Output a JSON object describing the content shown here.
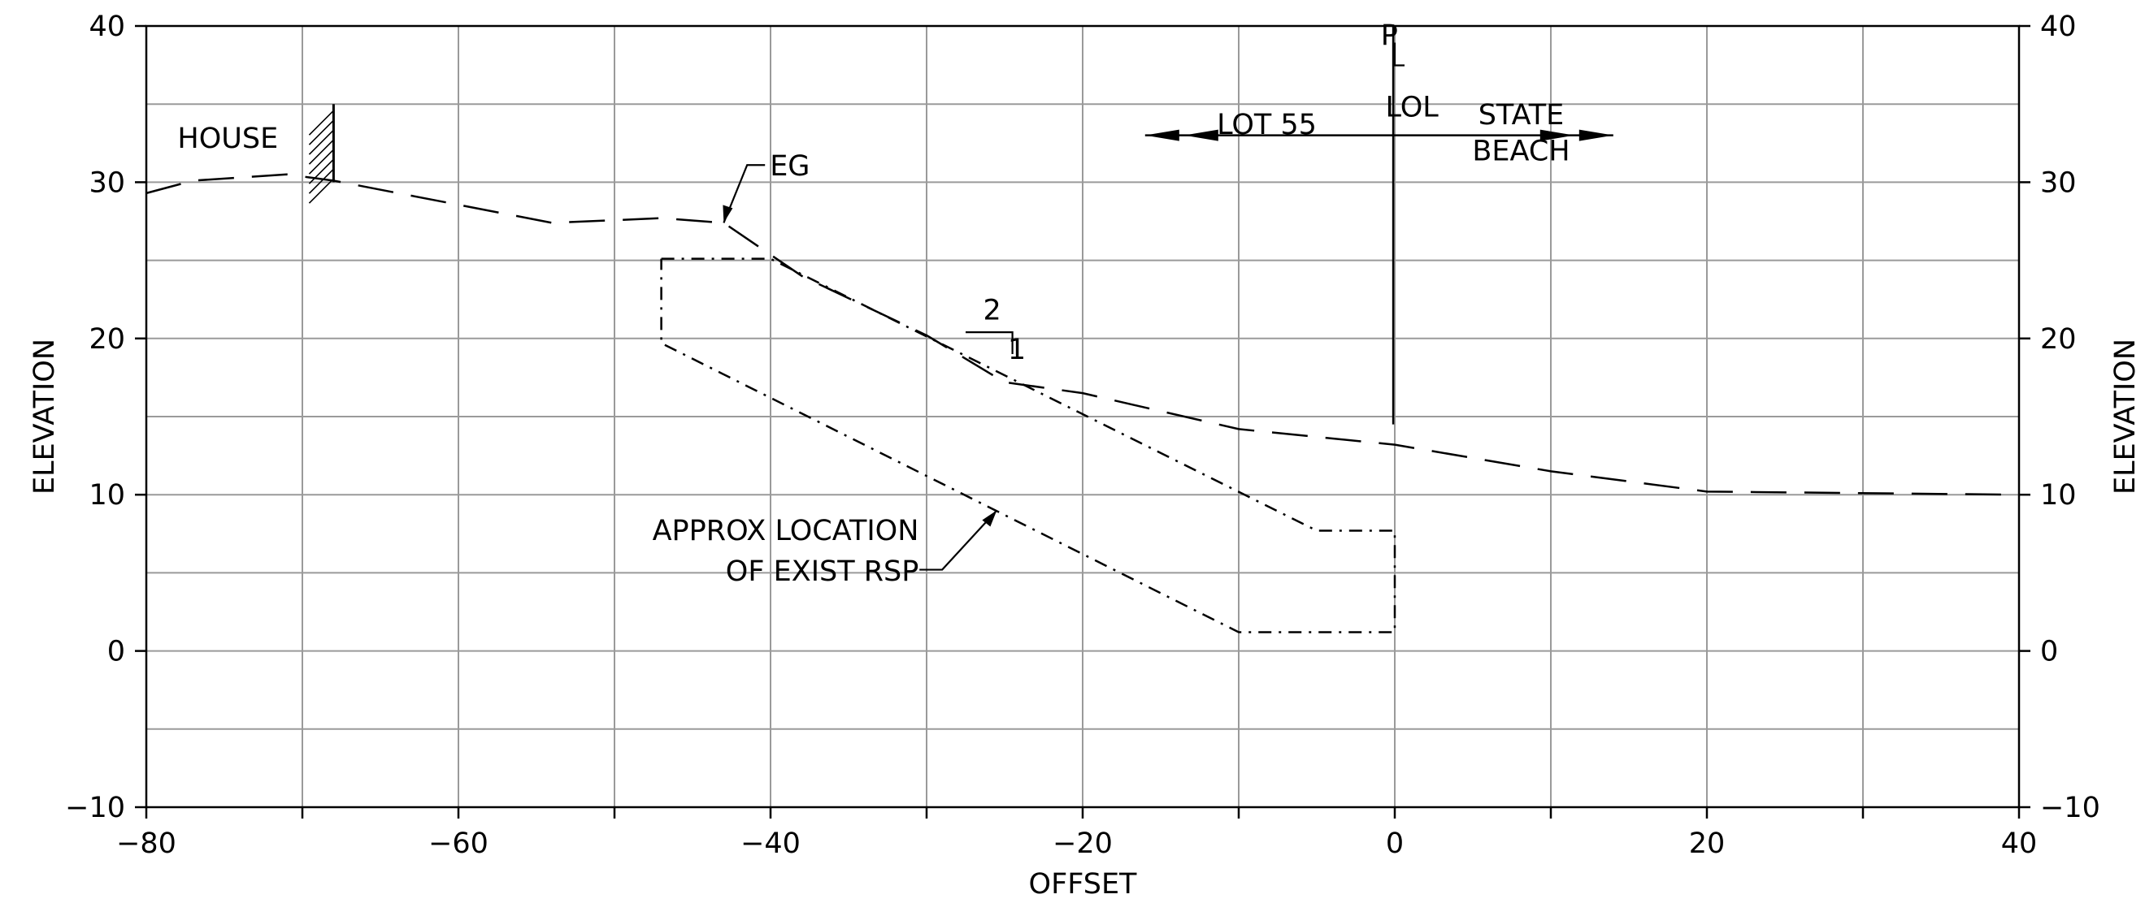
{
  "chart_data": {
    "type": "line",
    "title": "",
    "xlabel": "OFFSET",
    "ylabel_left": "ELEVATION",
    "ylabel_right": "ELEVATION",
    "xlim": [
      -80,
      40
    ],
    "ylim": [
      -10,
      40
    ],
    "x_major_ticks": [
      -80,
      -60,
      -40,
      -20,
      0,
      20,
      40
    ],
    "x_tick_labels": [
      "−80",
      "−60",
      "−40",
      "−20",
      "0",
      "20",
      "40"
    ],
    "x_grid_step": 10,
    "y_major_ticks": [
      -10,
      0,
      10,
      20,
      30,
      40
    ],
    "y_tick_labels": [
      "−10",
      "0",
      "10",
      "20",
      "30",
      "40"
    ],
    "y_grid_step": 5,
    "grid": true,
    "series": [
      {
        "name": "EG",
        "style": "long-dash",
        "color": "#000000",
        "points": [
          [
            -80,
            29.3
          ],
          [
            -77,
            30.1
          ],
          [
            -71,
            30.5
          ],
          [
            -68,
            30.1
          ],
          [
            -54,
            27.4
          ],
          [
            -47,
            27.7
          ],
          [
            -43,
            27.4
          ],
          [
            -38,
            24.0
          ],
          [
            -30,
            20.2
          ],
          [
            -25,
            17.2
          ],
          [
            -20,
            16.5
          ],
          [
            -10,
            14.2
          ],
          [
            0,
            13.2
          ],
          [
            10,
            11.5
          ],
          [
            20,
            10.2
          ],
          [
            40,
            10.0
          ]
        ]
      },
      {
        "name": "",
        "style": "dash-dot",
        "color": "#000000",
        "points": [
          [
            -47,
            25.1
          ],
          [
            -40,
            25.1
          ],
          [
            -5,
            7.7
          ],
          [
            0,
            7.7
          ],
          [
            0,
            1.2
          ],
          [
            -10,
            1.2
          ],
          [
            -47,
            19.7
          ],
          [
            -47,
            25.1
          ]
        ]
      },
      {
        "name": "",
        "style": "solid",
        "color": "#000000",
        "points": [
          [
            -0.1,
            40.1
          ],
          [
            -0.1,
            14.5
          ]
        ]
      }
    ],
    "annotations": {
      "house_label": "HOUSE",
      "eg_label": "EG",
      "cl_symbol": "P",
      "lol_label": "LOL",
      "lot_label": "LOT 55",
      "state_label": "STATE",
      "beach_label": "BEACH",
      "slope_top": "2",
      "slope_side": "1",
      "rsp_line1": "APPROX LOCATION",
      "rsp_line2": "OF EXIST RSP"
    }
  }
}
